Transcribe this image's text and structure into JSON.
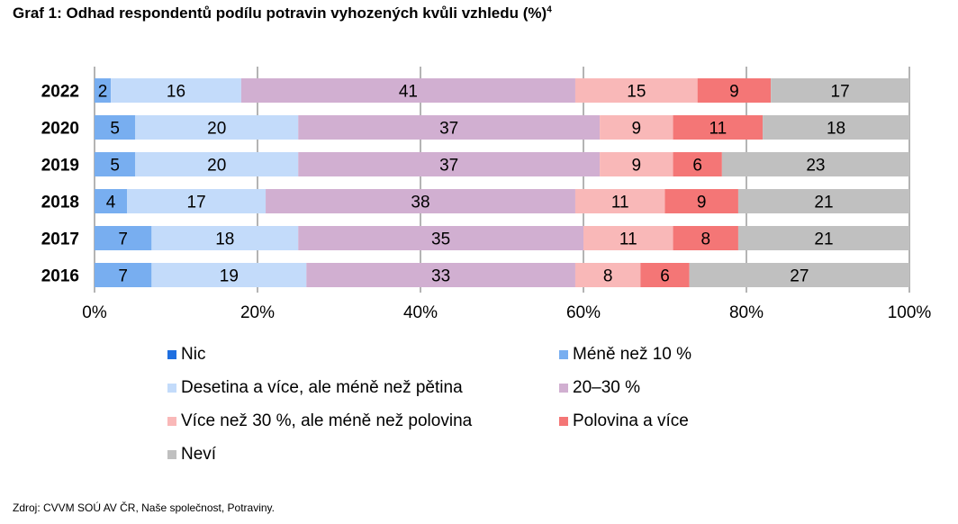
{
  "title": "Graf 1: Odhad respondentů podílu potravin vyhozených kvůli vzhledu (%)",
  "title_sup": "4",
  "source": "Zdroj: CVVM SOÚ AV ČR, Naše společnost, Potraviny.",
  "chart_data": {
    "type": "bar",
    "orientation": "horizontal",
    "stacked": true,
    "categories": [
      "2022",
      "2020",
      "2019",
      "2018",
      "2017",
      "2016"
    ],
    "series": [
      {
        "name": "Nic",
        "color": "#1f6fe0",
        "values": [
          0,
          0,
          0,
          0,
          0,
          0
        ]
      },
      {
        "name": "Méně než 10 %",
        "color": "#78aef0",
        "values": [
          2,
          5,
          5,
          4,
          7,
          7
        ]
      },
      {
        "name": "Desetina a více, ale méně než pětina",
        "color": "#c3dbfa",
        "values": [
          16,
          20,
          20,
          17,
          18,
          19
        ]
      },
      {
        "name": "20–30 %",
        "color": "#d1afd1",
        "values": [
          41,
          37,
          37,
          38,
          35,
          33
        ]
      },
      {
        "name": "Více než 30 %, ale méně než polovina",
        "color": "#f9b8b8",
        "values": [
          15,
          9,
          9,
          11,
          11,
          8
        ]
      },
      {
        "name": "Polovina a více",
        "color": "#f47676",
        "values": [
          9,
          11,
          6,
          9,
          8,
          6
        ]
      },
      {
        "name": "Neví",
        "color": "#c0c0c0",
        "values": [
          17,
          18,
          23,
          21,
          21,
          27
        ]
      }
    ],
    "xlim": [
      0,
      100
    ],
    "x_ticks": [
      "0%",
      "20%",
      "40%",
      "60%",
      "80%",
      "100%"
    ],
    "grid": true,
    "legend_position": "bottom"
  }
}
